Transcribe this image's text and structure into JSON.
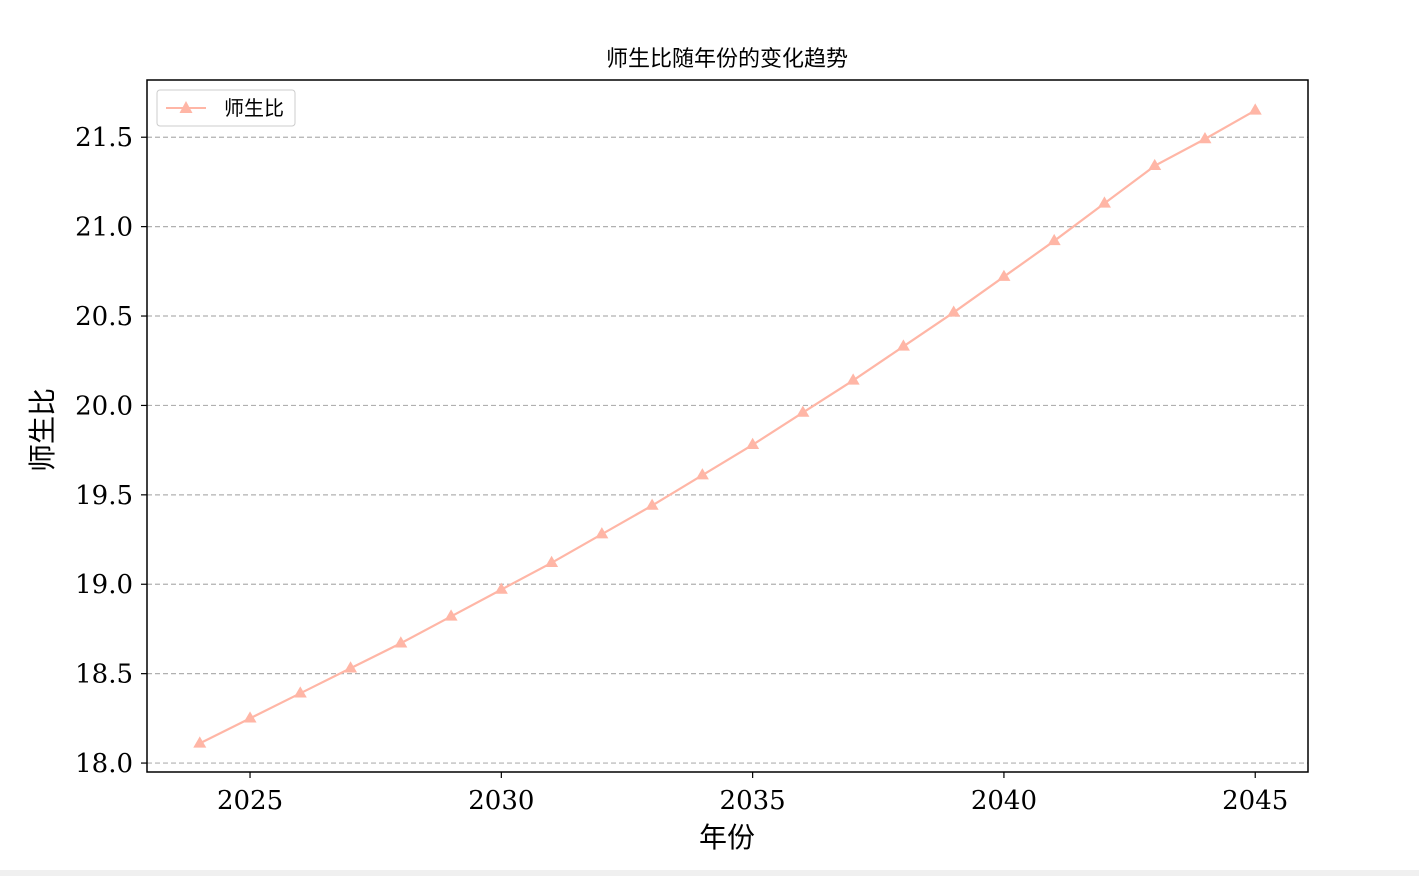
{
  "chart_data": {
    "type": "line",
    "title": "师生比随年份的变化趋势",
    "xlabel": "年份",
    "ylabel": "师生比",
    "x": [
      2024,
      2025,
      2026,
      2027,
      2028,
      2029,
      2030,
      2031,
      2032,
      2033,
      2034,
      2035,
      2036,
      2037,
      2038,
      2039,
      2040,
      2041,
      2042,
      2043,
      2044,
      2045
    ],
    "series": [
      {
        "name": "师生比",
        "color": "#ffb6a6",
        "marker": "triangle-up",
        "values": [
          18.11,
          18.25,
          18.39,
          18.53,
          18.67,
          18.82,
          18.97,
          19.12,
          19.28,
          19.44,
          19.61,
          19.78,
          19.96,
          20.14,
          20.33,
          20.52,
          20.72,
          20.92,
          21.13,
          21.34,
          21.49,
          21.65
        ]
      }
    ],
    "xlim": [
      2022.95,
      2046.05
    ],
    "ylim": [
      17.95,
      21.82
    ],
    "xticks": [
      2025,
      2030,
      2035,
      2040,
      2045
    ],
    "xtick_labels": [
      "2025",
      "2030",
      "2035",
      "2040",
      "2045"
    ],
    "yticks": [
      18.0,
      18.5,
      19.0,
      19.5,
      20.0,
      20.5,
      21.0,
      21.5
    ],
    "ytick_labels": [
      "18.0",
      "18.5",
      "19.0",
      "19.5",
      "20.0",
      "20.5",
      "21.0",
      "21.5"
    ],
    "grid": "y-dashed",
    "legend_position": "upper-left"
  }
}
